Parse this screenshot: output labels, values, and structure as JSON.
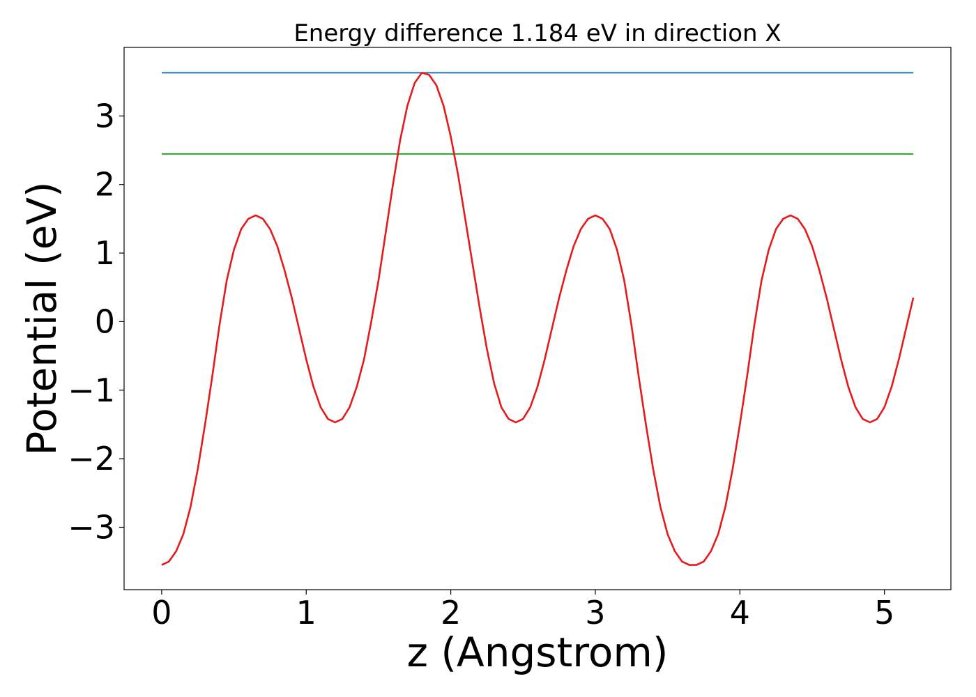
{
  "chart_data": {
    "type": "line",
    "title": "Energy difference 1.184 eV in direction X",
    "xlabel": "z (Angstrom)",
    "ylabel": "Potential (eV)",
    "xlim": [
      -0.26,
      5.46
    ],
    "ylim": [
      -3.91,
      4.0
    ],
    "xticks": [
      0,
      1,
      2,
      3,
      4,
      5
    ],
    "xtick_labels": [
      "0",
      "1",
      "2",
      "3",
      "4",
      "5"
    ],
    "yticks": [
      -3,
      -2,
      -1,
      0,
      1,
      2,
      3
    ],
    "ytick_labels": [
      "−3",
      "−2",
      "−1",
      "0",
      "1",
      "2",
      "3"
    ],
    "grid": false,
    "hlines": [
      {
        "y": 3.63,
        "x": [
          0,
          5.2
        ],
        "color": "#1f77b4"
      },
      {
        "y": 2.446,
        "x": [
          0,
          5.2
        ],
        "color": "#2ca02c"
      }
    ],
    "series": [
      {
        "color": "#e41a1c",
        "x": [
          0.0,
          0.05,
          0.1,
          0.15,
          0.2,
          0.25,
          0.3,
          0.35,
          0.4,
          0.45,
          0.5,
          0.55,
          0.6,
          0.65,
          0.7,
          0.75,
          0.8,
          0.85,
          0.9,
          0.95,
          1.0,
          1.05,
          1.1,
          1.15,
          1.2,
          1.25,
          1.3,
          1.35,
          1.4,
          1.45,
          1.5,
          1.55,
          1.6,
          1.65,
          1.7,
          1.75,
          1.8,
          1.85,
          1.9,
          1.95,
          2.0,
          2.05,
          2.1,
          2.15,
          2.2,
          2.25,
          2.3,
          2.35,
          2.4,
          2.45,
          2.5,
          2.55,
          2.6,
          2.65,
          2.7,
          2.75,
          2.8,
          2.85,
          2.9,
          2.95,
          3.0,
          3.05,
          3.1,
          3.15,
          3.2,
          3.25,
          3.3,
          3.35,
          3.4,
          3.45,
          3.5,
          3.55,
          3.6,
          3.65,
          3.7,
          3.75,
          3.8,
          3.85,
          3.9,
          3.95,
          4.0,
          4.05,
          4.1,
          4.15,
          4.2,
          4.25,
          4.3,
          4.35,
          4.4,
          4.45,
          4.5,
          4.55,
          4.6,
          4.65,
          4.7,
          4.75,
          4.8,
          4.85,
          4.9,
          4.95,
          5.0,
          5.05,
          5.1,
          5.15,
          5.2
        ],
        "y": [
          -3.55,
          -3.5,
          -3.35,
          -3.1,
          -2.7,
          -2.15,
          -1.5,
          -0.8,
          -0.05,
          0.6,
          1.05,
          1.35,
          1.5,
          1.55,
          1.5,
          1.35,
          1.1,
          0.75,
          0.35,
          -0.1,
          -0.55,
          -0.95,
          -1.25,
          -1.42,
          -1.47,
          -1.42,
          -1.25,
          -0.95,
          -0.55,
          0.0,
          0.6,
          1.3,
          2.0,
          2.65,
          3.15,
          3.48,
          3.63,
          3.6,
          3.45,
          3.15,
          2.7,
          2.15,
          1.5,
          0.85,
          0.2,
          -0.4,
          -0.9,
          -1.25,
          -1.42,
          -1.47,
          -1.42,
          -1.25,
          -0.95,
          -0.55,
          -0.1,
          0.35,
          0.75,
          1.1,
          1.35,
          1.5,
          1.55,
          1.5,
          1.35,
          1.05,
          0.6,
          -0.05,
          -0.8,
          -1.5,
          -2.15,
          -2.7,
          -3.1,
          -3.35,
          -3.5,
          -3.55,
          -3.55,
          -3.5,
          -3.35,
          -3.1,
          -2.7,
          -2.15,
          -1.5,
          -0.8,
          -0.05,
          0.6,
          1.05,
          1.35,
          1.5,
          1.55,
          1.5,
          1.35,
          1.1,
          0.75,
          0.35,
          -0.1,
          -0.55,
          -0.95,
          -1.25,
          -1.42,
          -1.47,
          -1.42,
          -1.25,
          -0.95,
          -0.55,
          -0.1,
          0.35
        ]
      }
    ]
  }
}
